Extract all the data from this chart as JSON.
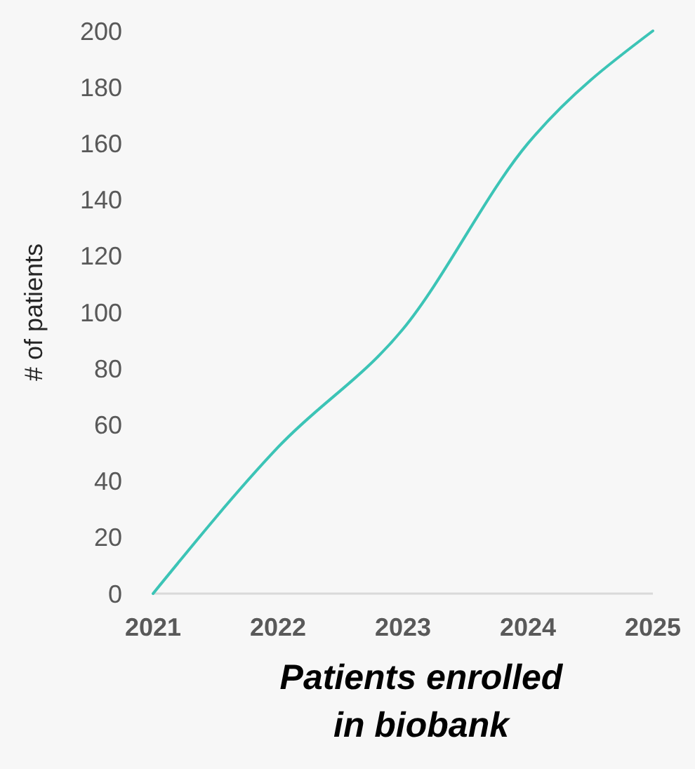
{
  "chart_data": {
    "type": "line",
    "title": "Patients enrolled in biobank",
    "ylabel": "# of patients",
    "categories": [
      "2021",
      "2022",
      "2023",
      "2024",
      "2025"
    ],
    "series": [
      {
        "color": "#3cc4b6",
        "values": [
          0,
          52,
          94,
          160,
          200
        ]
      }
    ],
    "ylim": [
      0,
      200
    ],
    "yticks": [
      0,
      20,
      40,
      60,
      80,
      100,
      120,
      140,
      160,
      180,
      200
    ],
    "grid": false,
    "marker": "none",
    "line_style": "solid"
  }
}
